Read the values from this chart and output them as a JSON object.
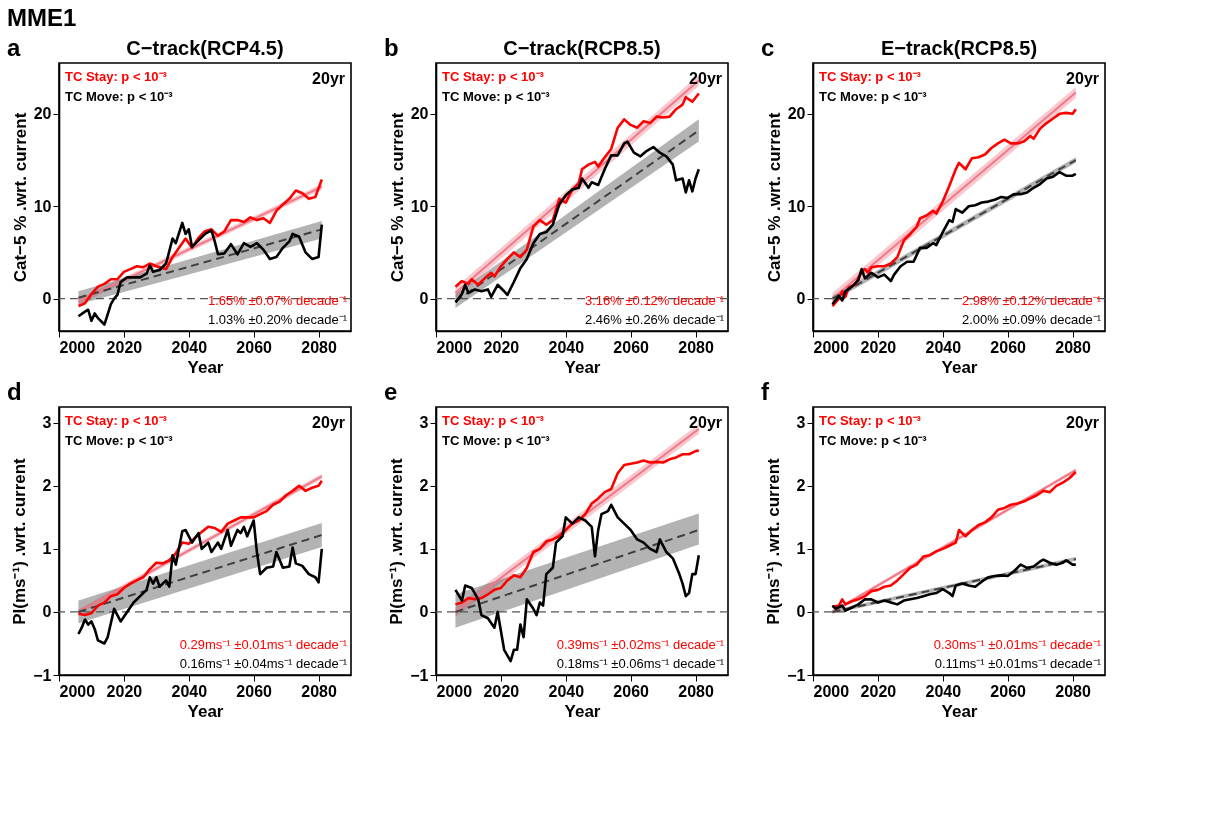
{
  "chart_data": [
    {
      "type": "line",
      "title": "C−track(RCP4.5)",
      "xlabel": "Year",
      "ylabel": "Cat−5 % .wrt. current",
      "xlim": [
        2000,
        2090
      ],
      "ylim": [
        -3.5,
        25.5
      ],
      "xticks": [
        2000,
        2020,
        2040,
        2060,
        2080
      ],
      "yticks": [
        0,
        10,
        20
      ],
      "marker": "none",
      "annotations": [
        "a",
        "20yr",
        "TC Stay: p < 10⁻³",
        "TC Move: p < 10⁻³",
        "1.65% ±0.07% decade⁻¹",
        "1.03% ±0.20% decade⁻¹",
        "MME1"
      ],
      "ref_lines": [
        {
          "axis": "y",
          "value": 0,
          "color": "#555555",
          "line_style": "dashed"
        }
      ],
      "series": [
        {
          "color": "#ff0000",
          "line_style": "solid",
          "x": [
            2006,
            2008,
            2010,
            2012,
            2014,
            2016,
            2018,
            2020,
            2022,
            2024,
            2026,
            2028,
            2030,
            2033,
            2035,
            2037,
            2039,
            2041,
            2043,
            2045,
            2047,
            2049,
            2051,
            2053,
            2055,
            2057,
            2059,
            2061,
            2063,
            2065,
            2067,
            2069,
            2071,
            2073,
            2075,
            2077,
            2079,
            2081
          ],
          "values": [
            -0.8,
            -0.5,
            0.5,
            1.3,
            1.6,
            2.1,
            2.1,
            2.9,
            3.2,
            3.5,
            3.4,
            3.8,
            3.5,
            3.2,
            4.5,
            5.5,
            6.5,
            5.5,
            6.6,
            7.3,
            7.5,
            6.8,
            7.3,
            8.5,
            8.5,
            8.3,
            8.8,
            8.5,
            8.7,
            8.2,
            9.5,
            10.2,
            10.8,
            11.7,
            11.4,
            10.8,
            11.0,
            12.9
          ]
        },
        {
          "color": "#000000",
          "line_style": "solid",
          "x": [
            2006,
            2008,
            2009,
            2010,
            2011,
            2012,
            2014,
            2016,
            2017,
            2018,
            2019,
            2021,
            2023,
            2025,
            2027,
            2028,
            2029,
            2031,
            2033,
            2035,
            2036,
            2038,
            2039,
            2040,
            2041,
            2043,
            2045,
            2047,
            2048,
            2049,
            2051,
            2053,
            2055,
            2057,
            2059,
            2061,
            2063,
            2065,
            2067,
            2069,
            2071,
            2072,
            2074,
            2076,
            2078,
            2080,
            2081
          ],
          "values": [
            -1.9,
            -1.4,
            -1.2,
            -2.4,
            -1.6,
            -2.1,
            -2.8,
            -0.6,
            0.0,
            0.4,
            1.8,
            2.3,
            2.3,
            2.3,
            2.7,
            3.6,
            2.9,
            3.1,
            3.8,
            6.5,
            6.0,
            8.2,
            7.0,
            7.5,
            5.6,
            6.3,
            7.0,
            7.4,
            6.2,
            4.8,
            4.9,
            5.9,
            4.8,
            6.0,
            5.6,
            6.0,
            5.3,
            4.3,
            4.5,
            5.5,
            6.2,
            7.0,
            6.7,
            5.0,
            4.3,
            4.5,
            8.0
          ]
        },
        {
          "type": "line",
          "color": "#f07888",
          "line_style": "solid",
          "x": [
            2006,
            2081
          ],
          "values": [
            -0.3,
            12.1
          ],
          "lower": [
            -0.6,
            11.8
          ],
          "upper": [
            0.0,
            12.4
          ]
        },
        {
          "type": "line",
          "color": "#404040",
          "line_style": "dashed",
          "x": [
            2006,
            2081
          ],
          "values": [
            0.1,
            7.5
          ],
          "lower": [
            -0.6,
            6.5
          ],
          "upper": [
            0.8,
            8.4
          ]
        }
      ]
    },
    {
      "type": "line",
      "title": "C−track(RCP8.5)",
      "xlabel": "Year",
      "ylabel": "Cat−5 % .wrt. current",
      "xlim": [
        2000,
        2090
      ],
      "ylim": [
        -3.5,
        25.5
      ],
      "xticks": [
        2000,
        2020,
        2040,
        2060,
        2080
      ],
      "yticks": [
        0,
        10,
        20
      ],
      "marker": "none",
      "annotations": [
        "b",
        "20yr",
        "TC Stay: p < 10⁻³",
        "TC Move: p < 10⁻³",
        "3.16% ±0.12% decade⁻¹",
        "2.46% ±0.26% decade⁻¹"
      ],
      "ref_lines": [
        {
          "axis": "y",
          "value": 0,
          "color": "#555555",
          "line_style": "dashed"
        }
      ],
      "series": [
        {
          "color": "#ff0000",
          "line_style": "solid",
          "x": [
            2006,
            2008,
            2010,
            2011,
            2013,
            2015,
            2017,
            2018,
            2020,
            2022,
            2024,
            2026,
            2028,
            2030,
            2032,
            2034,
            2036,
            2038,
            2040,
            2042,
            2044,
            2045,
            2047,
            2049,
            2050,
            2052,
            2054,
            2056,
            2058,
            2060,
            2062,
            2064,
            2066,
            2068,
            2070,
            2072,
            2074,
            2076,
            2077,
            2079,
            2081
          ],
          "values": [
            1.3,
            1.9,
            1.6,
            2.1,
            1.5,
            2.2,
            2.8,
            2.4,
            3.5,
            4.3,
            5.0,
            4.5,
            5.3,
            7.8,
            8.5,
            8.0,
            8.5,
            10.8,
            10.4,
            11.8,
            12.5,
            14.0,
            14.5,
            14.8,
            14.3,
            15.3,
            16.2,
            18.5,
            19.4,
            18.8,
            18.5,
            19.2,
            19.0,
            19.7,
            19.6,
            19.7,
            20.5,
            21.0,
            21.8,
            21.3,
            22.2
          ]
        },
        {
          "color": "#000000",
          "line_style": "solid",
          "x": [
            2006,
            2008,
            2009,
            2010,
            2012,
            2014,
            2016,
            2017,
            2019,
            2021,
            2022,
            2024,
            2026,
            2028,
            2030,
            2032,
            2034,
            2036,
            2038,
            2040,
            2042,
            2044,
            2045,
            2047,
            2048,
            2050,
            2052,
            2054,
            2056,
            2058,
            2059,
            2061,
            2063,
            2065,
            2067,
            2069,
            2071,
            2073,
            2074,
            2076,
            2077,
            2078,
            2079,
            2080,
            2081
          ],
          "values": [
            -0.4,
            0.5,
            1.5,
            0.6,
            1.0,
            0.8,
            1.0,
            0.2,
            1.5,
            0.8,
            0.4,
            1.8,
            3.3,
            4.3,
            6.0,
            7.0,
            7.2,
            8.0,
            10.2,
            11.2,
            11.8,
            12.0,
            13.0,
            12.0,
            12.6,
            12.3,
            14.0,
            15.5,
            15.5,
            16.8,
            17.0,
            15.8,
            15.4,
            16.0,
            16.4,
            15.8,
            15.4,
            14.5,
            12.8,
            13.0,
            11.5,
            12.8,
            11.6,
            13.0,
            14.0
          ]
        },
        {
          "type": "line",
          "color": "#f07888",
          "line_style": "solid",
          "x": [
            2006,
            2081
          ],
          "values": [
            0.6,
            23.6
          ],
          "lower": [
            0.0,
            23.0
          ],
          "upper": [
            1.2,
            24.2
          ]
        },
        {
          "type": "line",
          "color": "#404040",
          "line_style": "dashed",
          "x": [
            2006,
            2081
          ],
          "values": [
            -0.3,
            18.2
          ],
          "lower": [
            -1.0,
            17.0
          ],
          "upper": [
            0.5,
            19.4
          ]
        }
      ]
    },
    {
      "type": "line",
      "title": "E−track(RCP8.5)",
      "xlabel": "Year",
      "ylabel": "Cat−5 % .wrt. current",
      "xlim": [
        2000,
        2090
      ],
      "ylim": [
        -3.5,
        25.5
      ],
      "xticks": [
        2000,
        2020,
        2040,
        2060,
        2080
      ],
      "yticks": [
        0,
        10,
        20
      ],
      "marker": "none",
      "annotations": [
        "c",
        "20yr",
        "TC Stay: p < 10⁻³",
        "TC Move: p < 10⁻³",
        "2.98% ±0.12% decade⁻¹",
        "2.00% ±0.09% decade⁻¹"
      ],
      "ref_lines": [
        {
          "axis": "y",
          "value": 0,
          "color": "#555555",
          "line_style": "dashed"
        }
      ],
      "series": [
        {
          "color": "#ff0000",
          "line_style": "solid",
          "x": [
            2006,
            2008,
            2009,
            2010,
            2011,
            2013,
            2015,
            2016,
            2017,
            2018,
            2020,
            2022,
            2024,
            2026,
            2028,
            2030,
            2032,
            2033,
            2035,
            2037,
            2038,
            2040,
            2042,
            2044,
            2045,
            2047,
            2049,
            2051,
            2053,
            2055,
            2057,
            2059,
            2061,
            2063,
            2065,
            2067,
            2068,
            2070,
            2072,
            2074,
            2076,
            2078,
            2080,
            2081
          ],
          "values": [
            -0.8,
            0.0,
            0.8,
            0.2,
            1.2,
            1.5,
            3.0,
            3.2,
            2.8,
            3.4,
            3.5,
            3.5,
            3.8,
            4.5,
            6.3,
            7.0,
            7.8,
            8.7,
            9.0,
            9.5,
            9.2,
            10.5,
            12.2,
            14.0,
            14.7,
            14.0,
            15.2,
            15.3,
            15.6,
            16.3,
            16.8,
            17.2,
            16.8,
            16.8,
            17.0,
            17.6,
            17.3,
            18.4,
            19.0,
            19.5,
            20.0,
            20.1,
            20.0,
            20.5
          ]
        },
        {
          "color": "#000000",
          "line_style": "solid",
          "x": [
            2006,
            2008,
            2009,
            2010,
            2012,
            2014,
            2015,
            2016,
            2018,
            2020,
            2022,
            2024,
            2025,
            2027,
            2029,
            2031,
            2033,
            2035,
            2037,
            2038,
            2040,
            2042,
            2043,
            2044,
            2046,
            2048,
            2050,
            2052,
            2054,
            2056,
            2058,
            2060,
            2062,
            2064,
            2066,
            2068,
            2070,
            2072,
            2074,
            2076,
            2078,
            2080,
            2081
          ],
          "values": [
            -0.6,
            0.3,
            -0.2,
            0.8,
            1.3,
            2.0,
            3.2,
            2.2,
            2.8,
            2.3,
            2.6,
            1.9,
            2.6,
            3.5,
            4.0,
            4.0,
            5.5,
            5.5,
            6.0,
            5.8,
            7.2,
            8.5,
            8.3,
            9.7,
            9.3,
            10.0,
            10.1,
            10.4,
            10.5,
            10.7,
            11.0,
            10.9,
            11.3,
            11.3,
            11.5,
            12.0,
            12.4,
            13.0,
            13.2,
            13.7,
            13.3,
            13.3,
            13.5
          ]
        },
        {
          "type": "line",
          "color": "#f07888",
          "line_style": "solid",
          "x": [
            2006,
            2081
          ],
          "values": [
            0.0,
            22.3
          ],
          "lower": [
            -0.6,
            21.7
          ],
          "upper": [
            0.6,
            22.9
          ]
        },
        {
          "type": "line",
          "color": "#404040",
          "line_style": "dashed",
          "x": [
            2006,
            2081
          ],
          "values": [
            0.0,
            15.0
          ],
          "lower": [
            -0.3,
            14.7
          ],
          "upper": [
            0.3,
            15.3
          ]
        }
      ]
    },
    {
      "type": "line",
      "xlabel": "Year",
      "ylabel": "PI(ms⁻¹) .wrt. current",
      "xlim": [
        2000,
        2090
      ],
      "ylim": [
        -1,
        3.25
      ],
      "xticks": [
        2000,
        2020,
        2040,
        2060,
        2080
      ],
      "yticks": [
        -1,
        0,
        1,
        2,
        3
      ],
      "marker": "none",
      "annotations": [
        "d",
        "20yr",
        "TC Stay: p < 10⁻³",
        "TC Move: p < 10⁻³",
        "0.29ms⁻¹ ±0.01ms⁻¹ decade⁻¹",
        "0.16ms⁻¹ ±0.04ms⁻¹ decade⁻¹"
      ],
      "ref_lines": [
        {
          "axis": "y",
          "value": 0,
          "color": "#555555",
          "line_style": "dashed"
        }
      ],
      "series": [
        {
          "color": "#ff0000",
          "line_style": "solid",
          "x": [
            2006,
            2008,
            2010,
            2012,
            2014,
            2016,
            2018,
            2020,
            2022,
            2024,
            2026,
            2028,
            2030,
            2032,
            2034,
            2036,
            2038,
            2040,
            2042,
            2044,
            2046,
            2048,
            2050,
            2052,
            2054,
            2056,
            2058,
            2060,
            2062,
            2064,
            2066,
            2068,
            2070,
            2072,
            2074,
            2076,
            2078,
            2080,
            2081
          ],
          "values": [
            -0.03,
            -0.05,
            -0.02,
            0.1,
            0.15,
            0.25,
            0.28,
            0.38,
            0.45,
            0.5,
            0.55,
            0.68,
            0.78,
            0.77,
            0.82,
            0.93,
            1.1,
            1.08,
            1.18,
            1.27,
            1.35,
            1.33,
            1.27,
            1.4,
            1.45,
            1.5,
            1.5,
            1.5,
            1.55,
            1.6,
            1.7,
            1.75,
            1.85,
            1.92,
            2.0,
            1.92,
            1.97,
            2.0,
            2.08
          ]
        },
        {
          "color": "#000000",
          "line_style": "solid",
          "x": [
            2006,
            2007,
            2008,
            2009,
            2010,
            2011,
            2012,
            2014,
            2015,
            2017,
            2019,
            2021,
            2023,
            2025,
            2027,
            2028,
            2029,
            2030,
            2031,
            2033,
            2034,
            2035,
            2036,
            2038,
            2039,
            2041,
            2043,
            2044,
            2046,
            2047,
            2049,
            2050,
            2052,
            2053,
            2055,
            2056,
            2057,
            2058,
            2060,
            2061,
            2062,
            2064,
            2066,
            2067,
            2069,
            2071,
            2072,
            2073,
            2075,
            2077,
            2079,
            2080,
            2081
          ],
          "values": [
            -0.35,
            -0.25,
            -0.12,
            -0.2,
            -0.15,
            -0.27,
            -0.45,
            -0.5,
            -0.4,
            0.05,
            -0.15,
            0.0,
            0.15,
            0.25,
            0.35,
            0.55,
            0.45,
            0.55,
            0.4,
            0.5,
            0.4,
            0.9,
            0.75,
            1.28,
            1.3,
            1.1,
            1.25,
            1.0,
            1.1,
            0.95,
            1.1,
            1.0,
            1.3,
            1.05,
            1.3,
            1.25,
            1.35,
            1.2,
            1.45,
            0.95,
            0.6,
            0.7,
            0.72,
            0.95,
            0.7,
            0.72,
            1.02,
            0.77,
            0.73,
            0.6,
            0.55,
            0.47,
            1.0
          ]
        },
        {
          "type": "line",
          "color": "#f07888",
          "line_style": "solid",
          "x": [
            2006,
            2081
          ],
          "values": [
            0.0,
            2.15
          ],
          "lower": [
            -0.04,
            2.11
          ],
          "upper": [
            0.04,
            2.19
          ]
        },
        {
          "type": "line",
          "color": "#404040",
          "line_style": "dashed",
          "x": [
            2006,
            2081
          ],
          "values": [
            0.0,
            1.22
          ],
          "lower": [
            -0.18,
            1.03
          ],
          "upper": [
            0.18,
            1.41
          ]
        }
      ]
    },
    {
      "type": "line",
      "xlabel": "Year",
      "ylabel": "PI(ms⁻¹) .wrt. current",
      "xlim": [
        2000,
        2090
      ],
      "ylim": [
        -1,
        3.25
      ],
      "xticks": [
        2000,
        2020,
        2040,
        2060,
        2080
      ],
      "yticks": [
        -1,
        0,
        1,
        2,
        3
      ],
      "marker": "none",
      "annotations": [
        "e",
        "20yr",
        "TC Stay: p < 10⁻³",
        "TC Move: p < 10⁻³",
        "0.39ms⁻¹ ±0.02ms⁻¹ decade⁻¹",
        "0.18ms⁻¹ ±0.06ms⁻¹ decade⁻¹"
      ],
      "ref_lines": [
        {
          "axis": "y",
          "value": 0,
          "color": "#555555",
          "line_style": "dashed"
        }
      ],
      "series": [
        {
          "color": "#ff0000",
          "line_style": "solid",
          "x": [
            2006,
            2008,
            2010,
            2012,
            2014,
            2016,
            2018,
            2020,
            2022,
            2024,
            2026,
            2028,
            2030,
            2032,
            2034,
            2036,
            2038,
            2040,
            2042,
            2044,
            2046,
            2048,
            2050,
            2052,
            2054,
            2056,
            2058,
            2060,
            2062,
            2064,
            2066,
            2068,
            2070,
            2072,
            2074,
            2076,
            2078,
            2080,
            2081
          ],
          "values": [
            0.12,
            0.15,
            0.22,
            0.2,
            0.22,
            0.28,
            0.35,
            0.38,
            0.5,
            0.58,
            0.55,
            0.7,
            0.95,
            1.0,
            1.12,
            1.15,
            1.2,
            1.3,
            1.4,
            1.45,
            1.55,
            1.72,
            1.8,
            1.9,
            1.95,
            2.2,
            2.33,
            2.35,
            2.37,
            2.4,
            2.37,
            2.38,
            2.37,
            2.42,
            2.45,
            2.5,
            2.5,
            2.55,
            2.56
          ]
        },
        {
          "color": "#000000",
          "line_style": "solid",
          "x": [
            2006,
            2008,
            2009,
            2011,
            2013,
            2014,
            2016,
            2018,
            2019,
            2021,
            2023,
            2024,
            2025,
            2026,
            2027,
            2028,
            2030,
            2031,
            2032,
            2033,
            2034,
            2036,
            2037,
            2039,
            2040,
            2042,
            2044,
            2046,
            2048,
            2049,
            2050,
            2051,
            2053,
            2054,
            2056,
            2058,
            2060,
            2062,
            2064,
            2066,
            2068,
            2069,
            2071,
            2073,
            2075,
            2076,
            2077,
            2078,
            2079,
            2080,
            2081
          ],
          "values": [
            0.35,
            0.18,
            0.42,
            0.38,
            0.2,
            -0.05,
            -0.1,
            -0.25,
            0.0,
            -0.6,
            -0.78,
            -0.6,
            -0.6,
            -0.2,
            -0.4,
            0.2,
            0.05,
            -0.05,
            0.15,
            0.1,
            0.6,
            0.7,
            1.1,
            1.2,
            1.5,
            1.4,
            1.5,
            1.45,
            1.35,
            0.88,
            1.3,
            1.55,
            1.6,
            1.7,
            1.5,
            1.4,
            1.3,
            1.15,
            1.1,
            1.0,
            0.95,
            1.15,
            0.95,
            0.85,
            0.6,
            0.45,
            0.25,
            0.3,
            0.6,
            0.6,
            0.9
          ]
        },
        {
          "type": "line",
          "color": "#f07888",
          "line_style": "solid",
          "x": [
            2006,
            2081
          ],
          "values": [
            0.0,
            2.9
          ],
          "lower": [
            -0.08,
            2.82
          ],
          "upper": [
            0.08,
            2.98
          ]
        },
        {
          "type": "line",
          "color": "#404040",
          "line_style": "dashed",
          "x": [
            2006,
            2081
          ],
          "values": [
            0.0,
            1.3
          ],
          "lower": [
            -0.25,
            1.07
          ],
          "upper": [
            0.28,
            1.56
          ]
        }
      ]
    },
    {
      "type": "line",
      "xlabel": "Year",
      "ylabel": "PI(ms⁻¹) .wrt. current",
      "xlim": [
        2000,
        2090
      ],
      "ylim": [
        -1,
        3.25
      ],
      "xticks": [
        2000,
        2020,
        2040,
        2060,
        2080
      ],
      "yticks": [
        -1,
        0,
        1,
        2,
        3
      ],
      "marker": "none",
      "annotations": [
        "f",
        "20yr",
        "TC Stay: p < 10⁻³",
        "TC Move: p < 10⁻³",
        "0.30ms⁻¹ ±0.01ms⁻¹ decade⁻¹",
        "0.11ms⁻¹ ±0.01ms⁻¹ decade⁻¹"
      ],
      "ref_lines": [
        {
          "axis": "y",
          "value": 0,
          "color": "#555555",
          "line_style": "dashed"
        }
      ],
      "series": [
        {
          "color": "#ff0000",
          "line_style": "solid",
          "x": [
            2006,
            2008,
            2009,
            2010,
            2012,
            2014,
            2016,
            2018,
            2020,
            2022,
            2024,
            2026,
            2028,
            2030,
            2032,
            2034,
            2036,
            2038,
            2040,
            2042,
            2044,
            2045,
            2047,
            2049,
            2051,
            2053,
            2055,
            2057,
            2059,
            2061,
            2063,
            2065,
            2067,
            2069,
            2071,
            2073,
            2075,
            2077,
            2079,
            2081
          ],
          "values": [
            0.08,
            0.1,
            0.2,
            0.12,
            0.17,
            0.2,
            0.25,
            0.33,
            0.35,
            0.4,
            0.42,
            0.5,
            0.6,
            0.7,
            0.75,
            0.88,
            0.9,
            0.96,
            1.0,
            1.05,
            1.1,
            1.3,
            1.2,
            1.3,
            1.38,
            1.42,
            1.5,
            1.62,
            1.65,
            1.7,
            1.72,
            1.75,
            1.8,
            1.85,
            1.92,
            1.9,
            2.0,
            2.05,
            2.12,
            2.22
          ]
        },
        {
          "color": "#000000",
          "line_style": "solid",
          "x": [
            2006,
            2007,
            2009,
            2010,
            2012,
            2014,
            2016,
            2018,
            2020,
            2022,
            2024,
            2026,
            2028,
            2030,
            2032,
            2034,
            2036,
            2038,
            2040,
            2042,
            2043,
            2044,
            2046,
            2048,
            2050,
            2052,
            2054,
            2056,
            2058,
            2060,
            2062,
            2064,
            2066,
            2068,
            2070,
            2071,
            2073,
            2075,
            2077,
            2078,
            2080,
            2081
          ],
          "values": [
            0.1,
            0.05,
            0.1,
            0.02,
            0.07,
            0.12,
            0.2,
            0.2,
            0.15,
            0.18,
            0.15,
            0.12,
            0.18,
            0.2,
            0.22,
            0.25,
            0.28,
            0.3,
            0.36,
            0.3,
            0.25,
            0.42,
            0.45,
            0.42,
            0.4,
            0.48,
            0.55,
            0.57,
            0.58,
            0.57,
            0.65,
            0.75,
            0.7,
            0.72,
            0.8,
            0.83,
            0.78,
            0.75,
            0.78,
            0.82,
            0.75,
            0.75
          ]
        },
        {
          "type": "line",
          "color": "#f07888",
          "line_style": "solid",
          "x": [
            2006,
            2081
          ],
          "values": [
            0.0,
            2.25
          ],
          "lower": [
            -0.03,
            2.22
          ],
          "upper": [
            0.03,
            2.28
          ]
        },
        {
          "type": "line",
          "color": "#404040",
          "line_style": "dashed",
          "x": [
            2006,
            2081
          ],
          "values": [
            0.0,
            0.84
          ],
          "lower": [
            -0.03,
            0.81
          ],
          "upper": [
            0.03,
            0.87
          ]
        }
      ]
    }
  ]
}
